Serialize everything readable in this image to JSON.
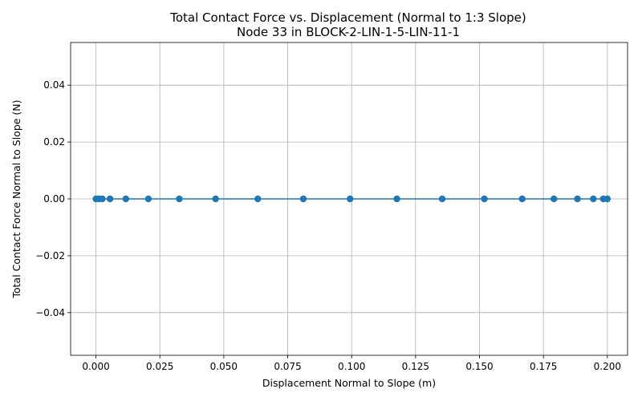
{
  "chart_data": {
    "type": "line",
    "title": "Total Contact Force vs. Displacement (Normal to 1:3 Slope)",
    "subtitle": "Node 33 in BLOCK-2-LIN-1-5-LIN-11-1",
    "xlabel": "Displacement Normal to Slope (m)",
    "ylabel": "Total Contact Force Normal to Slope (N)",
    "xlim": [
      -0.0099,
      0.2079
    ],
    "ylim": [
      -0.055,
      0.055
    ],
    "xticks": [
      0.0,
      0.025,
      0.05,
      0.075,
      0.1,
      0.125,
      0.15,
      0.175,
      0.2
    ],
    "xtick_labels": [
      "0.000",
      "0.025",
      "0.050",
      "0.075",
      "0.100",
      "0.125",
      "0.150",
      "0.175",
      "0.200"
    ],
    "yticks": [
      -0.04,
      -0.02,
      0.0,
      0.02,
      0.04
    ],
    "ytick_labels": [
      "−0.04",
      "−0.02",
      "0.00",
      "0.02",
      "0.04"
    ],
    "grid": true,
    "color": "#1f77b4",
    "series": [
      {
        "x": [
          0.0,
          0.0012,
          0.0025,
          0.0055,
          0.0117,
          0.0205,
          0.0326,
          0.0468,
          0.0633,
          0.0811,
          0.0994,
          0.1177,
          0.1354,
          0.1519,
          0.1667,
          0.1791,
          0.1883,
          0.1945,
          0.1984,
          0.2
        ],
        "y": [
          0,
          0,
          0,
          0,
          0,
          0,
          0,
          0,
          0,
          0,
          0,
          0,
          0,
          0,
          0,
          0,
          0,
          0,
          0,
          0
        ]
      }
    ]
  }
}
